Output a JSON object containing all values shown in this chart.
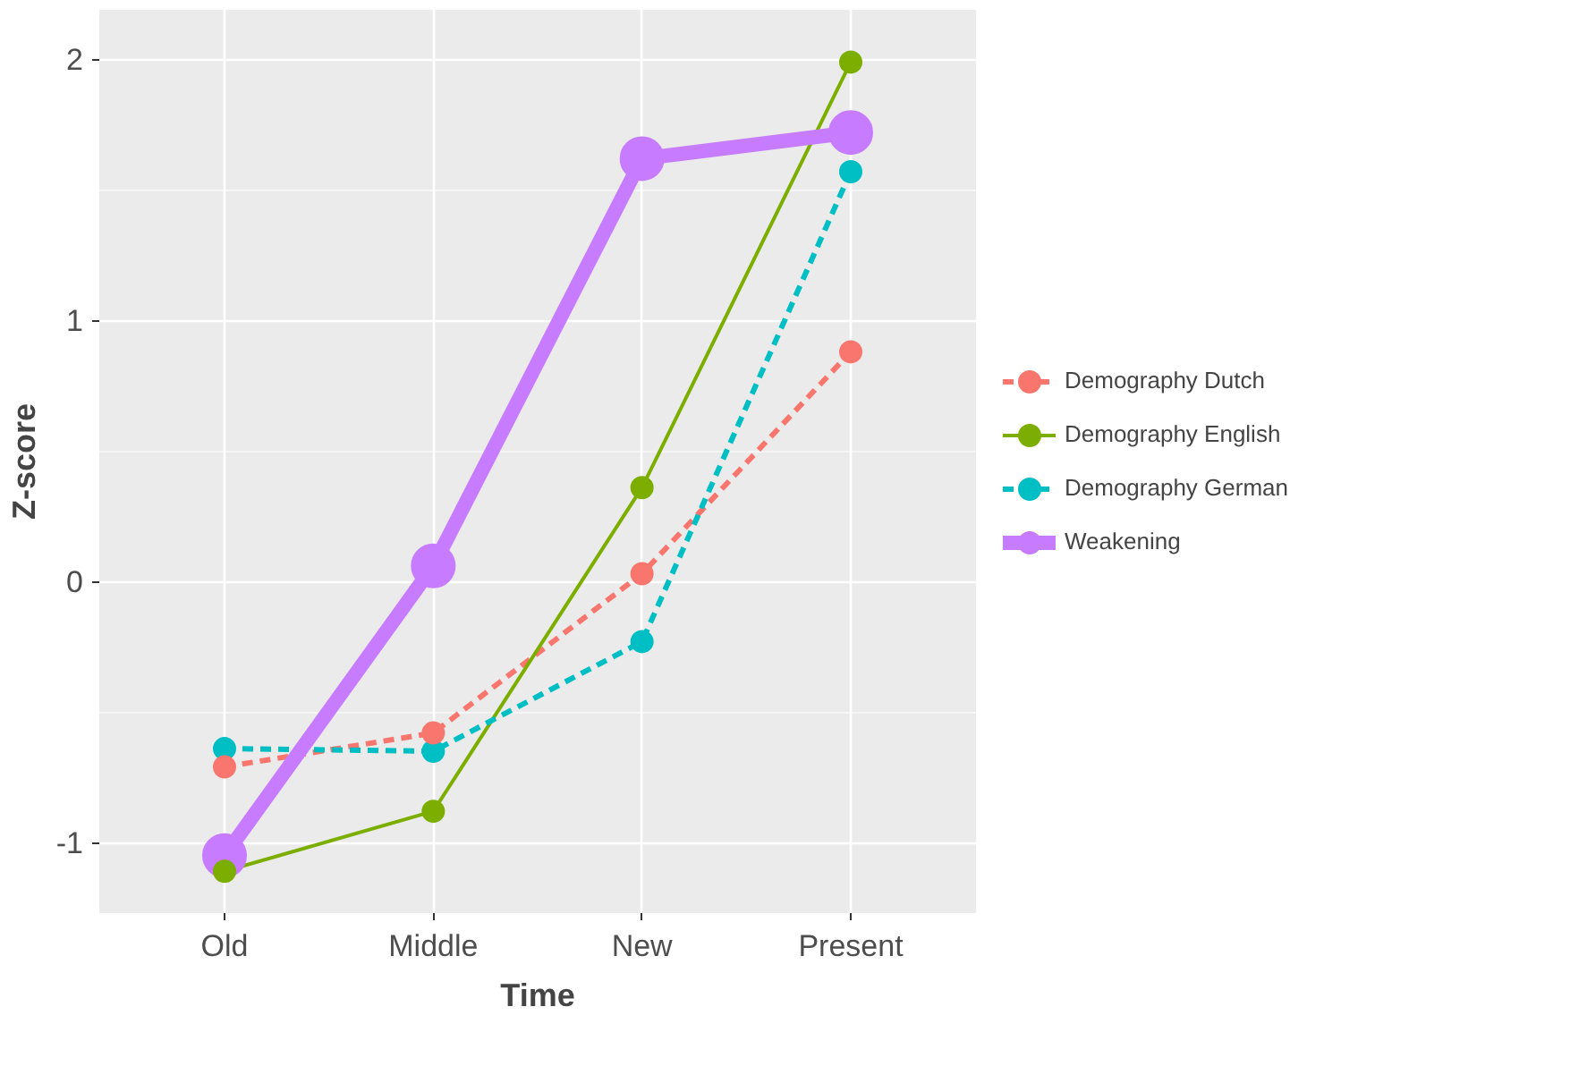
{
  "chart_data": {
    "type": "line",
    "xlabel": "Time",
    "ylabel": "Z-score",
    "categories": [
      "Old",
      "Middle",
      "New",
      "Present"
    ],
    "series": [
      {
        "name": "Demography Dutch",
        "color": "#f8766d",
        "line_style": "dashed",
        "values": [
          -0.71,
          -0.58,
          0.03,
          0.88
        ]
      },
      {
        "name": "Demography English",
        "color": "#7cae00",
        "line_style": "solid",
        "values": [
          -1.11,
          -0.88,
          0.36,
          1.99
        ]
      },
      {
        "name": "Demography German",
        "color": "#00bfc4",
        "line_style": "dashed",
        "values": [
          -0.64,
          -0.65,
          -0.23,
          1.57
        ]
      },
      {
        "name": "Weakening",
        "color": "#c77cff",
        "line_style": "solid",
        "values": [
          -1.05,
          0.06,
          1.62,
          1.72
        ]
      }
    ],
    "ylim": [
      -1.27,
      2.19
    ],
    "yticks": [
      {
        "value": -1,
        "label": "-1"
      },
      0,
      1,
      2
    ],
    "grid": true,
    "legend": "right",
    "marker": "circle"
  }
}
